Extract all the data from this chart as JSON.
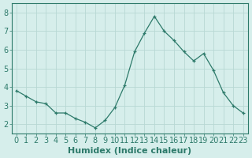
{
  "x": [
    0,
    1,
    2,
    3,
    4,
    5,
    6,
    7,
    8,
    9,
    10,
    11,
    12,
    13,
    14,
    15,
    16,
    17,
    18,
    19,
    20,
    21,
    22,
    23
  ],
  "y": [
    3.8,
    3.5,
    3.2,
    3.1,
    2.6,
    2.6,
    2.3,
    2.1,
    1.8,
    2.2,
    2.9,
    4.1,
    5.9,
    6.9,
    7.8,
    7.0,
    6.5,
    5.9,
    5.4,
    5.8,
    4.9,
    3.7,
    3.0,
    2.6
  ],
  "xlabel": "Humidex (Indice chaleur)",
  "ylim": [
    1.5,
    8.5
  ],
  "xlim": [
    -0.5,
    23.5
  ],
  "yticks": [
    2,
    3,
    4,
    5,
    6,
    7,
    8
  ],
  "xticks": [
    0,
    1,
    2,
    3,
    4,
    5,
    6,
    7,
    8,
    9,
    10,
    11,
    12,
    13,
    14,
    15,
    16,
    17,
    18,
    19,
    20,
    21,
    22,
    23
  ],
  "line_color": "#2d7a6a",
  "marker": "+",
  "bg_color": "#d6eeeb",
  "grid_color": "#b8d8d4",
  "spine_color": "#2d7a6a",
  "label_fontsize": 8,
  "tick_fontsize": 7
}
